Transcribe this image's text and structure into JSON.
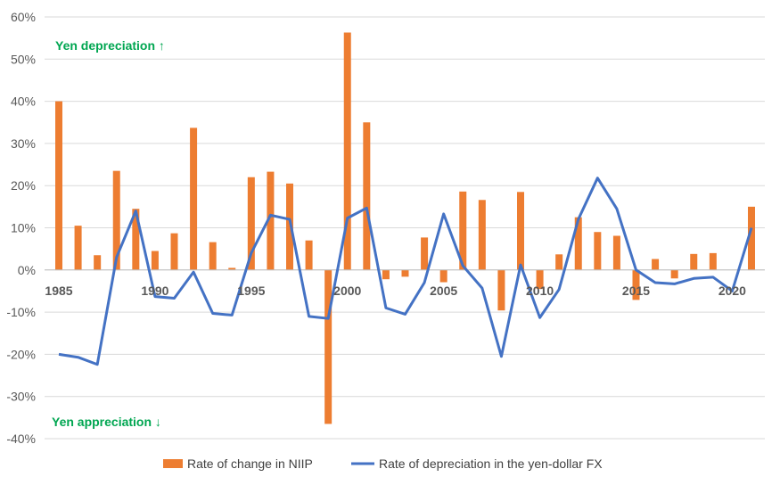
{
  "colors": {
    "bars": "#ed7d31",
    "line": "#4472c4",
    "annotation": "#00a651",
    "grid": "#d9d9d9",
    "text": "#595959"
  },
  "chart_data": {
    "type": "bar",
    "title": "",
    "xlabel": "",
    "ylabel": "",
    "ylim": [
      -0.4,
      0.6
    ],
    "y_tick_labels": [
      "60%",
      "50%",
      "40%",
      "30%",
      "20%",
      "10%",
      "0%",
      "-10%",
      "-20%",
      "-30%",
      "-40%"
    ],
    "y_ticks": [
      0.6,
      0.5,
      0.4,
      0.3,
      0.2,
      0.1,
      0.0,
      -0.1,
      -0.2,
      -0.3,
      -0.4
    ],
    "x_tick_labels": [
      "1985",
      "1990",
      "1995",
      "2000",
      "2005",
      "2010",
      "2015",
      "2020"
    ],
    "x_ticks": [
      1985,
      1990,
      1995,
      2000,
      2005,
      2010,
      2015,
      2020
    ],
    "grid": true,
    "legend_position": "bottom",
    "x": [
      1985,
      1986,
      1987,
      1988,
      1989,
      1990,
      1991,
      1992,
      1993,
      1994,
      1995,
      1996,
      1997,
      1998,
      1999,
      2000,
      2001,
      2002,
      2003,
      2004,
      2005,
      2006,
      2007,
      2008,
      2009,
      2010,
      2011,
      2012,
      2013,
      2014,
      2015,
      2016,
      2017,
      2018,
      2019,
      2020,
      2021
    ],
    "series": [
      {
        "name": "Rate of change in NIIP",
        "type": "bar",
        "values": [
          0.4,
          0.105,
          0.035,
          0.235,
          0.145,
          0.045,
          0.087,
          0.337,
          0.066,
          0.005,
          0.22,
          0.233,
          0.205,
          0.07,
          -0.365,
          0.563,
          0.35,
          -0.022,
          -0.016,
          0.077,
          -0.029,
          0.186,
          0.166,
          -0.096,
          0.185,
          -0.045,
          0.037,
          0.125,
          0.09,
          0.081,
          -0.071,
          0.026,
          -0.02,
          0.038,
          0.04,
          0.0,
          0.15
        ]
      },
      {
        "name": "Rate of depreciation in the yen-dollar FX",
        "type": "line",
        "values": [
          -0.2,
          -0.207,
          -0.224,
          0.03,
          0.14,
          -0.063,
          -0.067,
          -0.005,
          -0.103,
          -0.107,
          0.04,
          0.13,
          0.12,
          -0.11,
          -0.115,
          0.123,
          0.147,
          -0.09,
          -0.105,
          -0.03,
          0.133,
          0.01,
          -0.043,
          -0.205,
          0.012,
          -0.113,
          -0.046,
          0.12,
          0.218,
          0.145,
          0.0,
          -0.03,
          -0.033,
          -0.02,
          -0.017,
          -0.05,
          0.1
        ]
      }
    ],
    "annotations": {
      "top": "Yen depreciation ↑",
      "bottom": "Yen appreciation ↓"
    }
  }
}
